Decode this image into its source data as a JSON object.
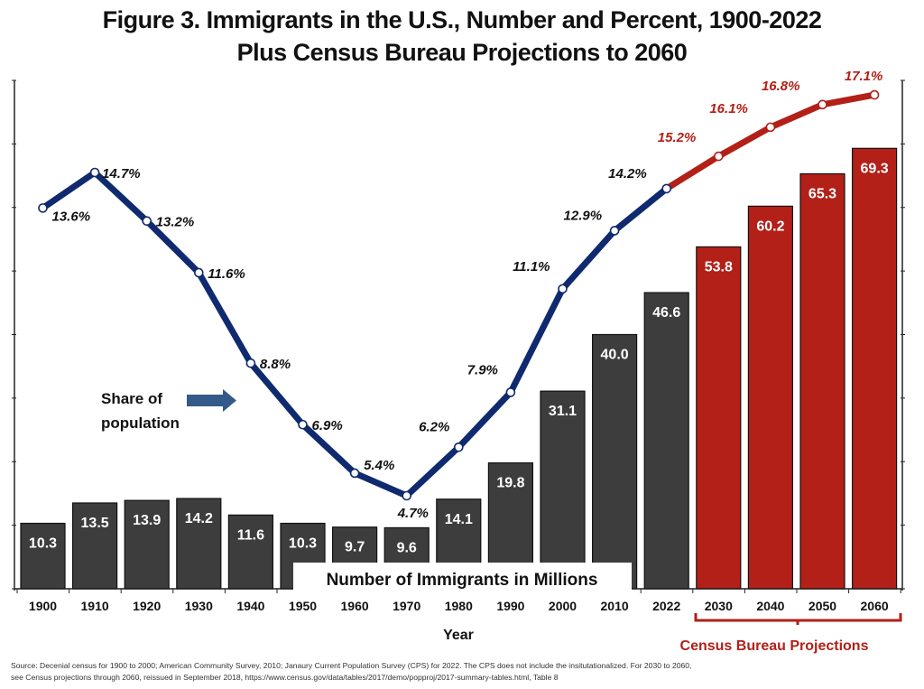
{
  "chart_data": {
    "type": "bar",
    "title": "Figure 3. Immigrants in the U.S., Number and Percent, 1900-2022",
    "subtitle": "Plus Census Bureau Projections to 2060",
    "xlabel": "Year",
    "ylabel": "",
    "categories": [
      "1900",
      "1910",
      "1920",
      "1930",
      "1940",
      "1950",
      "1960",
      "1970",
      "1980",
      "1990",
      "2000",
      "2010",
      "2022",
      "2030",
      "2040",
      "2050",
      "2060"
    ],
    "series": [
      {
        "name": "Number of Immigrants in Millions",
        "type": "bar",
        "values": [
          10.3,
          13.5,
          13.9,
          14.2,
          11.6,
          10.3,
          9.7,
          9.6,
          14.1,
          19.8,
          31.1,
          40.0,
          46.6,
          53.8,
          60.2,
          65.3,
          69.3
        ],
        "labels": [
          "10.3",
          "13.5",
          "13.9",
          "14.2",
          "11.6",
          "10.3",
          "9.7",
          "9.6",
          "14.1",
          "19.8",
          "31.1",
          "40.0",
          "46.6",
          "53.8",
          "60.2",
          "65.3",
          "69.3"
        ],
        "projected_from_index": 13
      },
      {
        "name": "Share of population",
        "type": "line",
        "values": [
          13.6,
          14.7,
          13.2,
          11.6,
          8.8,
          6.9,
          5.4,
          4.7,
          6.2,
          7.9,
          11.1,
          12.9,
          14.2,
          15.2,
          16.1,
          16.8,
          17.1
        ],
        "labels": [
          "13.6%",
          "14.7%",
          "13.2%",
          "11.6%",
          "8.8%",
          "6.9%",
          "5.4%",
          "4.7%",
          "6.2%",
          "7.9%",
          "11.1%",
          "12.9%",
          "14.2%",
          "15.2%",
          "16.1%",
          "16.8%",
          "17.1%"
        ],
        "projected_from_index": 12
      }
    ],
    "ylim_left": [
      0,
      80
    ],
    "ylim_right_percent": [
      0,
      20
    ],
    "annotations": {
      "share_label": [
        "Share of",
        "population"
      ],
      "bar_series_label": "Number of Immigrants in Millions",
      "projection_label": "Census Bureau Projections"
    },
    "colors": {
      "historical_bar": "#3d3d3d",
      "projected_bar": "#b22018",
      "historical_line": "#0f2a6e",
      "projected_line": "#b22018",
      "arrow": "#335a88"
    },
    "grid": false,
    "legend": "none"
  },
  "source": [
    "Source: Decenial census for 1900 to 2000; American Community Survey, 2010; Janaury Current Population Survey (CPS) for 2022. The CPS does not include the insitutationalized. For 2030 to 2060,",
    "see Census projections through 2060, reissued in September 2018, https://www.census.gov/data/tables/2017/demo/popproj/2017-summary-tables.html, Table 8"
  ]
}
